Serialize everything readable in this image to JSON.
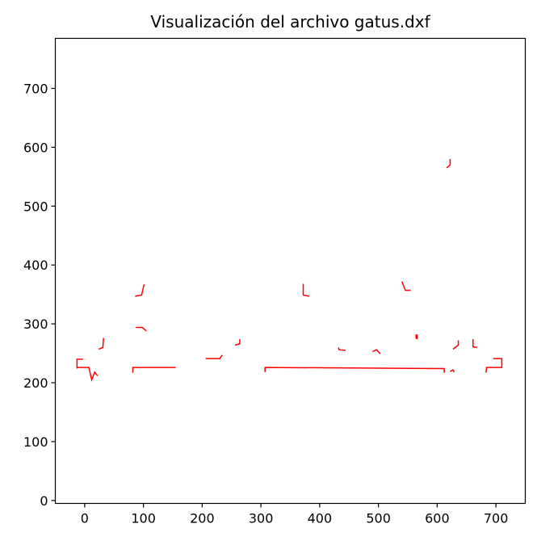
{
  "chart_data": {
    "type": "line",
    "title": "Visualización del archivo gatus.dxf",
    "xlabel": "",
    "ylabel": "",
    "xlim": [
      -50,
      750
    ],
    "ylim": [
      -5,
      785
    ],
    "xticks": [
      0,
      100,
      200,
      300,
      400,
      500,
      600,
      700
    ],
    "yticks": [
      0,
      100,
      200,
      300,
      400,
      500,
      600,
      700
    ],
    "grid": false,
    "aspect": "equal",
    "line_color": "#ff0000",
    "segments": [
      [
        [
          -13,
          224
        ],
        [
          -13,
          240
        ],
        [
          -3,
          240
        ]
      ],
      [
        [
          -13,
          226
        ],
        [
          7,
          226
        ],
        [
          12,
          205
        ],
        [
          17,
          218
        ],
        [
          22,
          212
        ]
      ],
      [
        [
          82,
          217
        ],
        [
          82,
          226
        ],
        [
          155,
          226
        ]
      ],
      [
        [
          24,
          257
        ],
        [
          31,
          260
        ],
        [
          32,
          276
        ]
      ],
      [
        [
          86,
          347
        ],
        [
          97,
          349
        ],
        [
          101,
          367
        ]
      ],
      [
        [
          87,
          294
        ],
        [
          98,
          294
        ],
        [
          105,
          288
        ]
      ],
      [
        [
          206,
          241
        ],
        [
          230,
          241
        ],
        [
          234,
          247
        ]
      ],
      [
        [
          256,
          264
        ],
        [
          264,
          266
        ],
        [
          264,
          274
        ]
      ],
      [
        [
          307,
          218
        ],
        [
          307,
          226
        ],
        [
          612,
          224
        ],
        [
          612,
          217
        ]
      ],
      [
        [
          372,
          368
        ],
        [
          372,
          349
        ],
        [
          382,
          347
        ]
      ],
      [
        [
          432,
          260
        ],
        [
          433,
          256
        ],
        [
          444,
          255
        ]
      ],
      [
        [
          490,
          253
        ],
        [
          497,
          256
        ],
        [
          503,
          249
        ]
      ],
      [
        [
          540,
          372
        ],
        [
          546,
          357
        ],
        [
          555,
          357
        ]
      ],
      [
        [
          564,
          282
        ],
        [
          564,
          276
        ],
        [
          566,
          275
        ],
        [
          566,
          282
        ]
      ],
      [
        [
          616,
          565
        ],
        [
          622,
          570
        ],
        [
          622,
          580
        ]
      ],
      [
        [
          622,
          219
        ],
        [
          627,
          222
        ],
        [
          629,
          218
        ]
      ],
      [
        [
          627,
          257
        ],
        [
          636,
          264
        ],
        [
          636,
          272
        ]
      ],
      [
        [
          661,
          274
        ],
        [
          661,
          261
        ],
        [
          668,
          260
        ]
      ],
      [
        [
          683,
          217
        ],
        [
          684,
          226
        ],
        [
          710,
          226
        ],
        [
          710,
          241
        ],
        [
          695,
          241
        ]
      ]
    ]
  }
}
